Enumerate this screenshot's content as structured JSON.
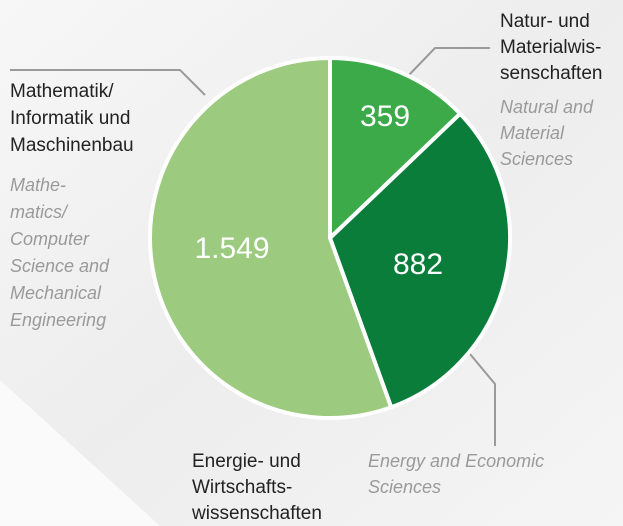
{
  "chart_data": {
    "type": "pie",
    "categories": [
      {
        "de": [
          "Natur- und",
          "Materialwis-",
          "senschaften"
        ],
        "en": [
          "Natural and",
          "Material",
          "Sciences"
        ]
      },
      {
        "de": [
          "Energie- und",
          "Wirtschafts-",
          "wissenschaften"
        ],
        "en": [
          "Energy and Economic",
          "Sciences"
        ]
      },
      {
        "de": [
          "Mathematik/",
          "Informatik und",
          "Maschinenbau"
        ],
        "en": [
          "Mathe-",
          "matics/",
          "Computer",
          "Science and",
          "Mechanical",
          "Engineering"
        ]
      }
    ],
    "values": [
      359,
      882,
      1549
    ],
    "value_labels": [
      "359",
      "882",
      "1.549"
    ],
    "colors": [
      "#3daa4a",
      "#0b7d3b",
      "#9ccb80"
    ]
  }
}
